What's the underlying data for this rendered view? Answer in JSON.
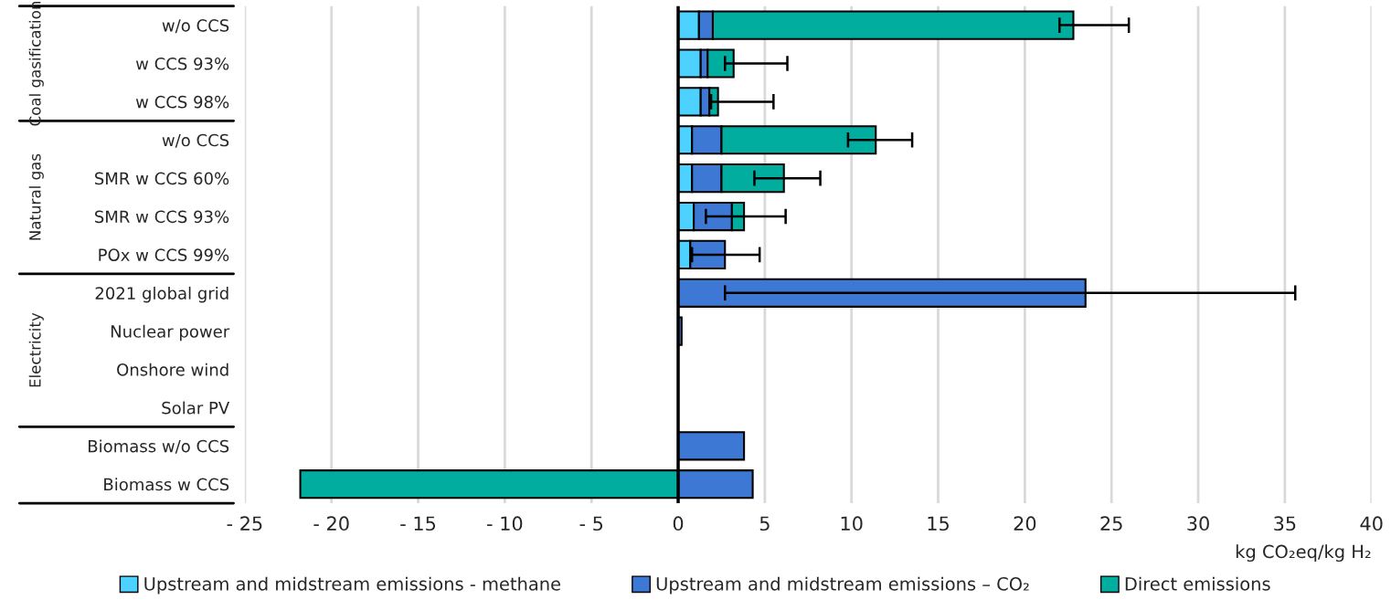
{
  "chart_data": {
    "type": "bar",
    "orientation": "horizontal",
    "stacked": true,
    "categories": [
      "w/o CCS",
      "w CCS 93%",
      "w CCS 98%",
      "w/o CCS",
      "SMR w CCS 60%",
      "SMR w CCS 93%",
      "POx w CCS 99%",
      "2021 global grid",
      "Nuclear power",
      "Onshore wind",
      "Solar PV",
      "Biomass w/o CCS",
      "Biomass w CCS"
    ],
    "series": [
      {
        "name": "Upstream and midstream emissions - methane",
        "color": "#4dd2ff",
        "values": [
          1.2,
          1.3,
          1.3,
          0.8,
          0.8,
          0.9,
          0.7,
          null,
          null,
          null,
          null,
          null,
          null
        ]
      },
      {
        "name": "Upstream and midstream emissions – CO₂",
        "color": "#3c78d4",
        "values": [
          0.8,
          0.4,
          0.5,
          1.7,
          1.7,
          2.2,
          2.0,
          23.5,
          0.2,
          null,
          null,
          3.8,
          4.3
        ],
        "errors": [
          null,
          null,
          null,
          null,
          null,
          null,
          [
            0.8,
            4.7
          ],
          [
            2.7,
            35.6
          ],
          null,
          null,
          null,
          null,
          null
        ]
      },
      {
        "name": "Direct emissions",
        "color": "#00ad9f",
        "values": [
          20.8,
          1.5,
          0.5,
          8.9,
          3.6,
          0.7,
          null,
          null,
          null,
          null,
          null,
          null,
          -21.8
        ],
        "errors": [
          [
            22.0,
            26.0
          ],
          [
            2.7,
            6.3
          ],
          [
            1.9,
            5.5
          ],
          [
            9.8,
            13.5
          ],
          [
            4.4,
            8.2
          ],
          [
            1.6,
            6.2
          ],
          null,
          null,
          null,
          null,
          null,
          null,
          null
        ]
      }
    ],
    "xlim": [
      -25,
      40
    ],
    "xticks": [
      {
        "value": -25,
        "label": "- 25"
      },
      {
        "value": -20,
        "label": "- 20"
      },
      {
        "value": -15,
        "label": "- 15"
      },
      {
        "value": -10,
        "label": "- 10"
      },
      {
        "value": -5,
        "label": "- 5"
      },
      0,
      5,
      10,
      15,
      20,
      25,
      30,
      35,
      40
    ],
    "xlabel": "kg CO₂eq/kg H₂",
    "annotations": [
      "Coal gasification",
      "Natural gas",
      "Electricity"
    ],
    "grid": "x",
    "legend": "bottom"
  }
}
